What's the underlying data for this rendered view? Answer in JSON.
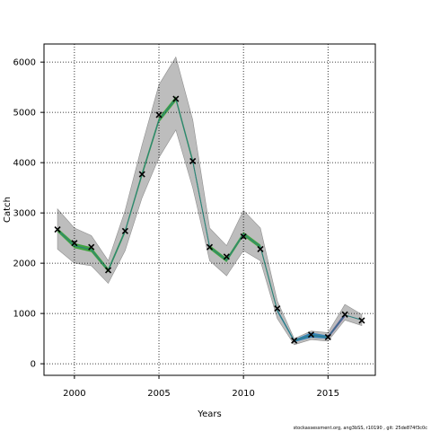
{
  "chart_data": {
    "type": "line",
    "xlabel": "Years",
    "ylabel": "Catch",
    "xlim": [
      1998.2,
      2017.8
    ],
    "ylim": [
      -230,
      6360
    ],
    "xticks": [
      2000,
      2005,
      2010,
      2015
    ],
    "yticks": [
      0,
      1000,
      2000,
      3000,
      4000,
      5000,
      6000
    ],
    "grid": true,
    "grid_style": "dotted",
    "footer": "stockassessment.org, ang3bSS, r10190 , git: 25de874f3c0c",
    "band_outer": {
      "color": "#bdbdbd",
      "x": [
        1999,
        2000,
        2001,
        2002,
        2003,
        2004,
        2005,
        2006,
        2007,
        2008,
        2009,
        2010,
        2011,
        2012,
        2013,
        2014,
        2015,
        2016,
        2017
      ],
      "lower": [
        2280,
        2000,
        1950,
        1600,
        2250,
        3300,
        4100,
        4650,
        3500,
        2050,
        1750,
        2250,
        2050,
        900,
        380,
        480,
        450,
        870,
        760
      ],
      "upper": [
        3080,
        2700,
        2550,
        2050,
        3050,
        4350,
        5550,
        6100,
        4850,
        2700,
        2350,
        3050,
        2700,
        1250,
        500,
        650,
        620,
        1180,
        980
      ]
    },
    "segments": [
      {
        "color": "#2ca02c",
        "x": [
          1999,
          2000,
          2001,
          2002,
          2003,
          2004,
          2005,
          2006,
          2007,
          2008,
          2009,
          2010,
          2011,
          2012
        ],
        "lower": [
          2620,
          2300,
          2220,
          1820,
          2600,
          3720,
          4800,
          5220,
          3980,
          2280,
          2020,
          2540,
          2290,
          1030
        ],
        "upper": [
          2700,
          2400,
          2320,
          1900,
          2680,
          3820,
          4900,
          5320,
          4080,
          2360,
          2100,
          2620,
          2370,
          1090
        ]
      },
      {
        "color": "#1f77b4",
        "x": [
          2012,
          2013,
          2014,
          2015
        ],
        "lower": [
          1030,
          430,
          520,
          500
        ],
        "upper": [
          1090,
          480,
          620,
          560
        ]
      },
      {
        "color": "#5b3fa0",
        "x": [
          2015,
          2016
        ],
        "lower": [
          500,
          930
        ],
        "upper": [
          560,
          1010
        ]
      }
    ],
    "series": [
      {
        "color": "#2a7f7f",
        "x": [
          1999,
          2000,
          2001,
          2002,
          2003,
          2004,
          2005,
          2006,
          2007,
          2008,
          2009,
          2010,
          2011,
          2012,
          2013,
          2014,
          2015,
          2016,
          2017
        ],
        "values": [
          2660,
          2350,
          2270,
          1860,
          2640,
          3770,
          4850,
          5270,
          4030,
          2320,
          2060,
          2580,
          2330,
          1060,
          455,
          570,
          530,
          970,
          870
        ]
      }
    ],
    "observed": {
      "marker": "x",
      "x": [
        1999,
        2000,
        2001,
        2002,
        2003,
        2004,
        2005,
        2006,
        2007,
        2008,
        2009,
        2010,
        2011,
        2012,
        2013,
        2014,
        2015,
        2016,
        2017
      ],
      "values": [
        2670,
        2400,
        2320,
        1860,
        2640,
        3770,
        4950,
        5270,
        4030,
        2320,
        2130,
        2530,
        2280,
        1100,
        460,
        580,
        530,
        980,
        860
      ]
    }
  }
}
